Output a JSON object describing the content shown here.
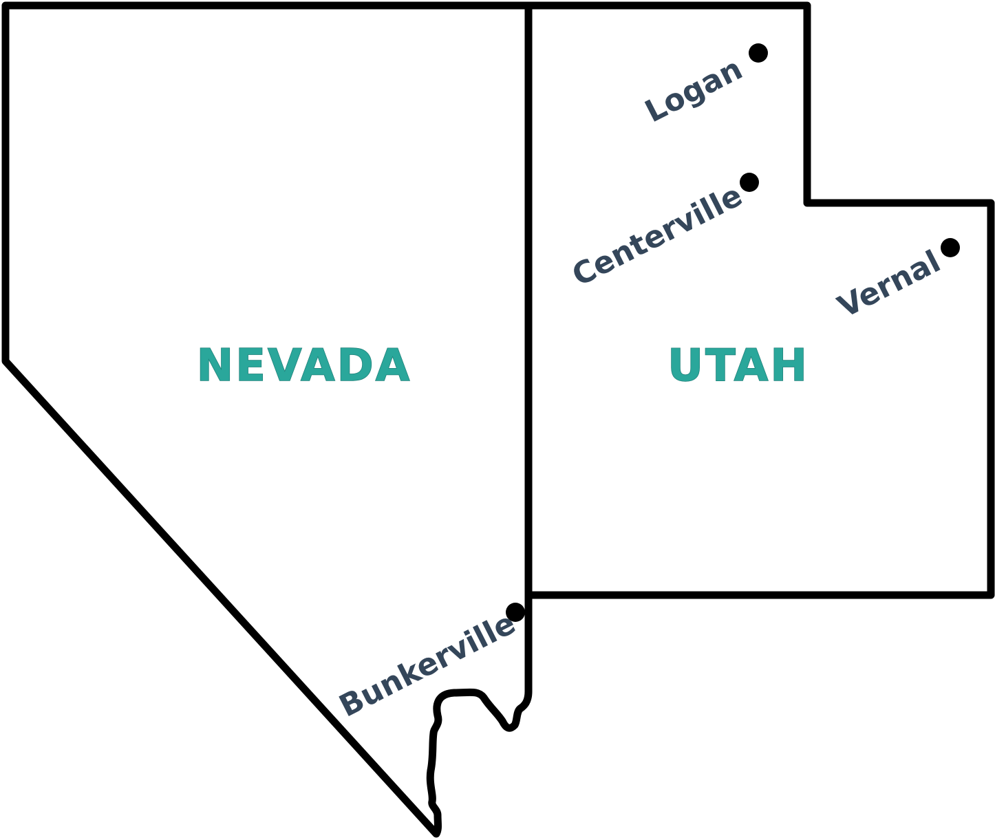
{
  "colors": {
    "background": "#ffffff",
    "border": "#000000",
    "state_label": "#2aa79b",
    "city_label": "#34465a",
    "city_dot": "#000000"
  },
  "states": [
    {
      "id": "nevada",
      "name": "NEVADA"
    },
    {
      "id": "utah",
      "name": "UTAH"
    }
  ],
  "cities": [
    {
      "id": "logan",
      "name": "Logan",
      "state": "UTAH"
    },
    {
      "id": "centerville",
      "name": "Centerville",
      "state": "UTAH"
    },
    {
      "id": "vernal",
      "name": "Vernal",
      "state": "UTAH"
    },
    {
      "id": "bunkerville",
      "name": "Bunkerville",
      "state": "NEVADA"
    }
  ]
}
